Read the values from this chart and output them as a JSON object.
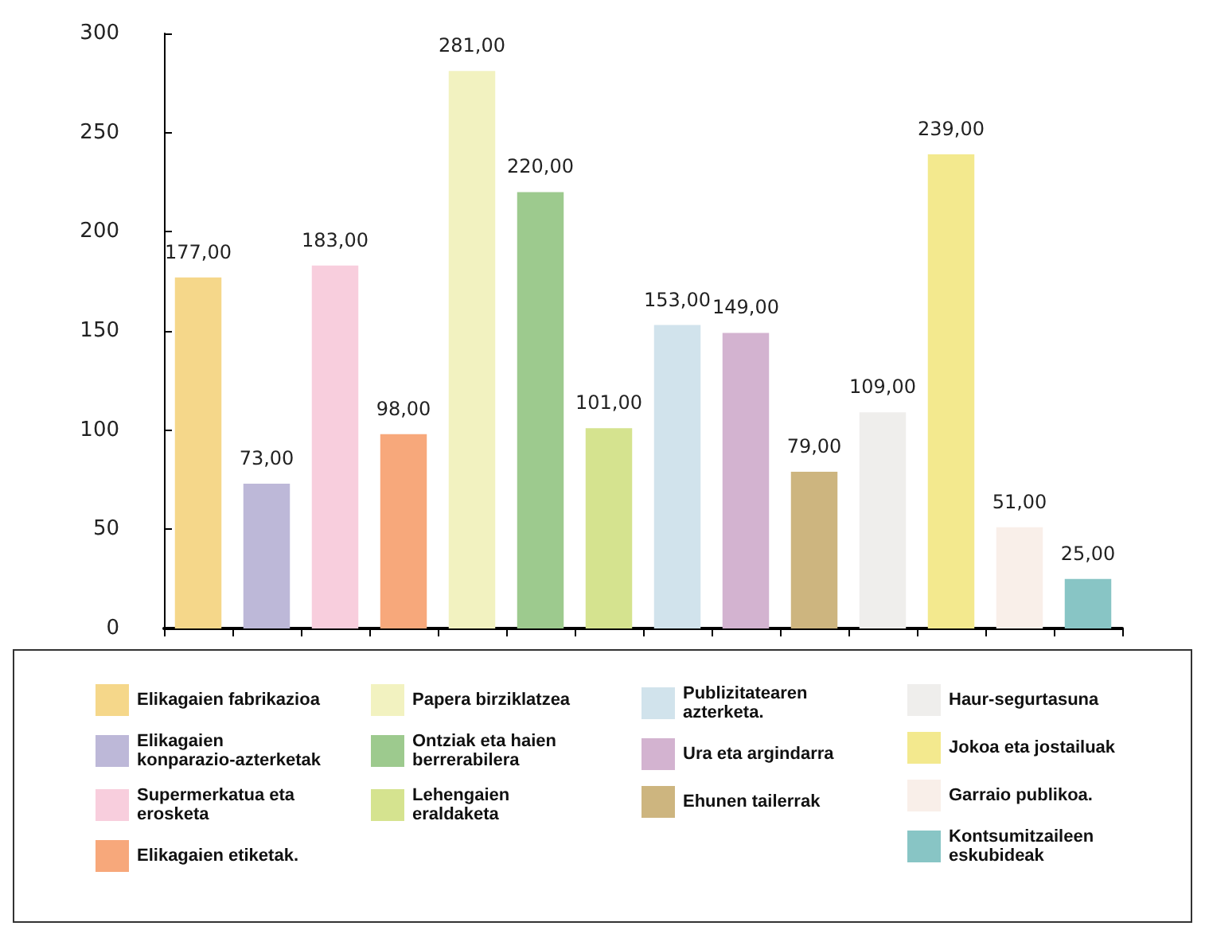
{
  "chart_data": {
    "type": "bar",
    "categories": [
      null,
      null,
      null,
      null,
      null,
      null,
      null,
      null,
      null,
      null,
      null,
      null,
      null,
      null
    ],
    "series": [
      {
        "name": "Elikagaien fabrikazioa",
        "color": "#f5d78a",
        "values": [
          177,
          null,
          null,
          null,
          null,
          null,
          null,
          null,
          null,
          null,
          null,
          null,
          null,
          null
        ],
        "value_labels": [
          "177,00",
          null,
          null,
          null,
          null,
          null,
          null,
          null,
          null,
          null,
          null,
          null,
          null,
          null
        ]
      },
      {
        "name": "Elikagaien konparazio-azterketak",
        "color": "#bdb8d8",
        "values": [
          null,
          73,
          null,
          null,
          null,
          null,
          null,
          null,
          null,
          null,
          null,
          null,
          null,
          null
        ],
        "value_labels": [
          null,
          "73,00",
          null,
          null,
          null,
          null,
          null,
          null,
          null,
          null,
          null,
          null,
          null,
          null
        ]
      },
      {
        "name": "Supermerkatua eta erosketa",
        "color": "#f8cedd",
        "values": [
          null,
          null,
          183,
          null,
          null,
          null,
          null,
          null,
          null,
          null,
          null,
          null,
          null,
          null
        ],
        "value_labels": [
          null,
          null,
          "183,00",
          null,
          null,
          null,
          null,
          null,
          null,
          null,
          null,
          null,
          null,
          null
        ]
      },
      {
        "name": "Elikagaien etiketak.",
        "color": "#f7a87b",
        "values": [
          null,
          null,
          null,
          98,
          null,
          null,
          null,
          null,
          null,
          null,
          null,
          null,
          null,
          null
        ],
        "value_labels": [
          null,
          null,
          null,
          "98,00",
          null,
          null,
          null,
          null,
          null,
          null,
          null,
          null,
          null,
          null
        ]
      },
      {
        "name": "Papera birziklatzea",
        "color": "#f2f2c0",
        "values": [
          null,
          null,
          null,
          null,
          281,
          null,
          null,
          null,
          null,
          null,
          null,
          null,
          null,
          null
        ],
        "value_labels": [
          null,
          null,
          null,
          null,
          "281,00",
          null,
          null,
          null,
          null,
          null,
          null,
          null,
          null,
          null
        ]
      },
      {
        "name": "Ontziak eta haien berrerabilera",
        "color": "#9dca8e",
        "values": [
          null,
          null,
          null,
          null,
          null,
          220,
          null,
          null,
          null,
          null,
          null,
          null,
          null,
          null
        ],
        "value_labels": [
          null,
          null,
          null,
          null,
          null,
          "220,00",
          null,
          null,
          null,
          null,
          null,
          null,
          null,
          null
        ]
      },
      {
        "name": "Lehengaien eraldaketa",
        "color": "#d5e38f",
        "values": [
          null,
          null,
          null,
          null,
          null,
          null,
          101,
          null,
          null,
          null,
          null,
          null,
          null,
          null
        ],
        "value_labels": [
          null,
          null,
          null,
          null,
          null,
          null,
          "101,00",
          null,
          null,
          null,
          null,
          null,
          null,
          null
        ]
      },
      {
        "name": "Publizitatearen azterketa.",
        "color": "#d1e3ec",
        "values": [
          null,
          null,
          null,
          null,
          null,
          null,
          null,
          153,
          null,
          null,
          null,
          null,
          null,
          null
        ],
        "value_labels": [
          null,
          null,
          null,
          null,
          null,
          null,
          null,
          "153,00",
          null,
          null,
          null,
          null,
          null,
          null
        ]
      },
      {
        "name": "Ura eta argindarra",
        "color": "#d3b3d0",
        "values": [
          null,
          null,
          null,
          null,
          null,
          null,
          null,
          null,
          149,
          null,
          null,
          null,
          null,
          null
        ],
        "value_labels": [
          null,
          null,
          null,
          null,
          null,
          null,
          null,
          null,
          "149,00",
          null,
          null,
          null,
          null,
          null
        ]
      },
      {
        "name": "Ehunen tailerrak",
        "color": "#cdb57f",
        "values": [
          null,
          null,
          null,
          null,
          null,
          null,
          null,
          null,
          null,
          79,
          null,
          null,
          null,
          null
        ],
        "value_labels": [
          null,
          null,
          null,
          null,
          null,
          null,
          null,
          null,
          null,
          "79,00",
          null,
          null,
          null,
          null
        ]
      },
      {
        "name": "Haur-segurtasuna",
        "color": "#efeeec",
        "values": [
          null,
          null,
          null,
          null,
          null,
          null,
          null,
          null,
          null,
          null,
          109,
          null,
          null,
          null
        ],
        "value_labels": [
          null,
          null,
          null,
          null,
          null,
          null,
          null,
          null,
          null,
          null,
          "109,00",
          null,
          null,
          null
        ]
      },
      {
        "name": "Jokoa eta jostailuak",
        "color": "#f3e98e",
        "values": [
          null,
          null,
          null,
          null,
          null,
          null,
          null,
          null,
          null,
          null,
          null,
          239,
          null,
          null
        ],
        "value_labels": [
          null,
          null,
          null,
          null,
          null,
          null,
          null,
          null,
          null,
          null,
          null,
          "239,00",
          null,
          null
        ]
      },
      {
        "name": "Garraio publikoa.",
        "color": "#f9efe9",
        "values": [
          null,
          null,
          null,
          null,
          null,
          null,
          null,
          null,
          null,
          null,
          null,
          null,
          51,
          null
        ],
        "value_labels": [
          null,
          null,
          null,
          null,
          null,
          null,
          null,
          null,
          null,
          null,
          null,
          null,
          "51,00",
          null
        ]
      },
      {
        "name": "Kontsumitzaileen eskubideak",
        "color": "#88c5c5",
        "values": [
          null,
          null,
          null,
          null,
          null,
          null,
          null,
          null,
          null,
          null,
          null,
          null,
          null,
          25
        ],
        "value_labels": [
          null,
          null,
          null,
          null,
          null,
          null,
          null,
          null,
          null,
          null,
          null,
          null,
          null,
          "25,00"
        ]
      }
    ],
    "ylim": [
      0,
      300
    ],
    "yticks": [
      0,
      50,
      100,
      150,
      200,
      250,
      300
    ],
    "grid": false,
    "legend": "bottom"
  }
}
